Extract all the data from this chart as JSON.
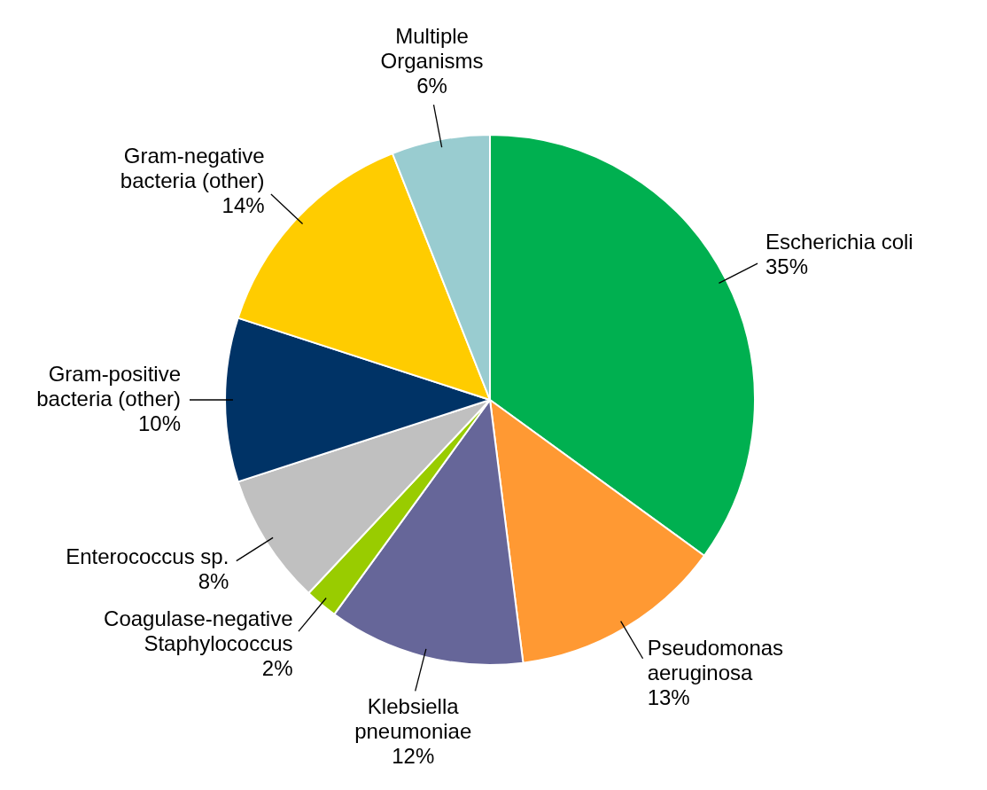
{
  "chart_data": {
    "type": "pie",
    "categories": [
      "Escherichia coli",
      "Pseudomonas aeruginosa",
      "Klebsiella pneumoniae",
      "Coagulase-negative Staphylococcus",
      "Enterococcus sp.",
      "Gram-positive bacteria (other)",
      "Gram-negative bacteria (other)",
      "Multiple Organisms"
    ],
    "values": [
      35,
      13,
      12,
      2,
      8,
      10,
      14,
      6
    ],
    "value_labels": [
      "35%",
      "13%",
      "12%",
      "2%",
      "8%",
      "10%",
      "14%",
      "6%"
    ],
    "colors": [
      "#00b050",
      "#ff9933",
      "#666699",
      "#99cc00",
      "#c0c0c0",
      "#003366",
      "#ffcc00",
      "#99ccd0"
    ],
    "legend": false
  }
}
